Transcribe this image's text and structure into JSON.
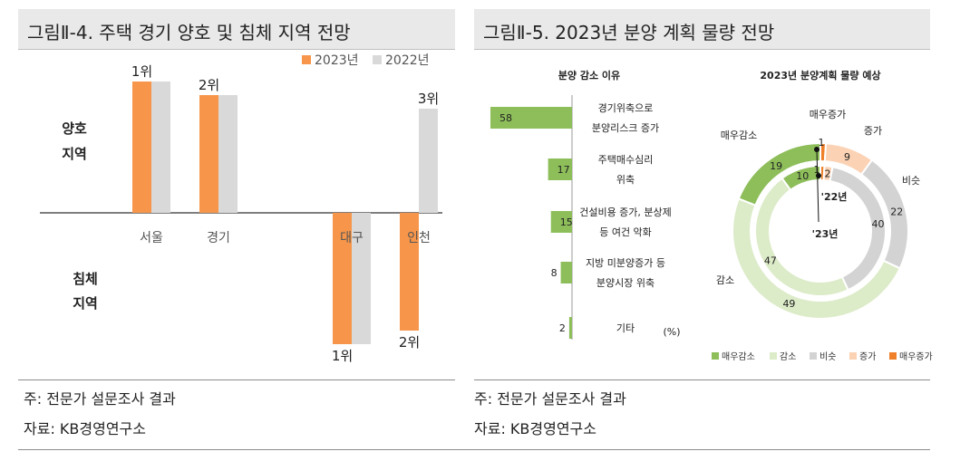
{
  "left_panel": {
    "title": "그림Ⅱ-4. 주택 경기 양호 및 침체 지역 전망",
    "note": "주: 전문가 설문조사 결과",
    "source": "자료: KB경영연구소",
    "good_region_label": [
      "양호",
      "지역"
    ],
    "bad_region_label": [
      "침체",
      "지역"
    ]
  },
  "right_panel": {
    "title": "그림Ⅱ-5. 2023년 분양 계획 물량 전망",
    "note": "주: 전문가 설문조사 결과",
    "source": "자료: KB경영연구소",
    "unit": "(%)",
    "label_22": "'22년",
    "label_23": "'23년"
  },
  "colors": {
    "orange": "#f7964a",
    "lightgray": "#d9d9d9",
    "green": "#8dbe5a",
    "lightgreen": "#dcebc8",
    "gray": "#d3d3d3",
    "peach": "#fbd2b4",
    "darkorange": "#f07f2a"
  },
  "chart_data": [
    {
      "type": "bar",
      "title": "그림Ⅱ-4. 주택 경기 양호 및 침체 지역 전망",
      "legend_position": "top-right",
      "categories": [
        "서울",
        "경기",
        "대구",
        "인천"
      ],
      "series": [
        {
          "name": "2023년",
          "values": [
            1,
            2,
            -1,
            -2
          ],
          "rank_labels": [
            "1위",
            "2위",
            "1위",
            "2위"
          ],
          "color": "#f7964a"
        },
        {
          "name": "2022년",
          "values": [
            1,
            2,
            -1,
            3
          ],
          "rank_labels": [
            "",
            "",
            "",
            "3위"
          ],
          "color": "#d9d9d9"
        }
      ]
    },
    {
      "type": "bar",
      "orientation": "horizontal",
      "title": "분양 감소 이유",
      "unit": "(%)",
      "categories": [
        [
          "경기위축으로",
          "분양리스크 증가"
        ],
        [
          "주택매수심리",
          "위축"
        ],
        [
          "건설비용 증가, 분상제",
          "등 여건 악화"
        ],
        [
          "지방 미분양증가 등",
          "분양시장 위축"
        ],
        [
          "기타"
        ]
      ],
      "values": [
        58,
        17,
        15,
        8,
        2
      ],
      "color": "#8dbe5a"
    },
    {
      "type": "pie",
      "subtype": "doughnut",
      "title": "2023년 분양계획 물량 예상",
      "legend_position": "bottom",
      "categories": [
        "매우감소",
        "감소",
        "비슷",
        "증가",
        "매우증가"
      ],
      "colors": [
        "#8dbe5a",
        "#dcebc8",
        "#d3d3d3",
        "#fbd2b4",
        "#f07f2a"
      ],
      "series": [
        {
          "name": "'23년",
          "values": [
            19,
            49,
            22,
            9,
            1
          ]
        },
        {
          "name": "'22년",
          "values": [
            10,
            47,
            40,
            2,
            1
          ]
        }
      ]
    }
  ]
}
